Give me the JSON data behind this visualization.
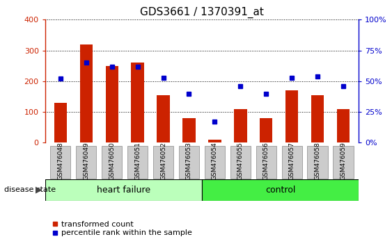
{
  "title": "GDS3661 / 1370391_at",
  "samples": [
    "GSM476048",
    "GSM476049",
    "GSM476050",
    "GSM476051",
    "GSM476052",
    "GSM476053",
    "GSM476054",
    "GSM476055",
    "GSM476056",
    "GSM476057",
    "GSM476058",
    "GSM476059"
  ],
  "bar_values": [
    130,
    320,
    250,
    260,
    155,
    80,
    10,
    110,
    80,
    170,
    155,
    110
  ],
  "dot_values": [
    52,
    65,
    62,
    62,
    53,
    40,
    17,
    46,
    40,
    53,
    54,
    46
  ],
  "bar_color": "#cc2200",
  "dot_color": "#0000cc",
  "left_ylim": [
    0,
    400
  ],
  "right_ylim": [
    0,
    100
  ],
  "left_yticks": [
    0,
    100,
    200,
    300,
    400
  ],
  "right_yticks": [
    0,
    25,
    50,
    75,
    100
  ],
  "right_yticklabels": [
    "0%",
    "25%",
    "50%",
    "75%",
    "100%"
  ],
  "heart_failure_count": 6,
  "heart_failure_label": "heart failure",
  "control_label": "control",
  "disease_state_label": "disease state",
  "legend_bar_label": "transformed count",
  "legend_dot_label": "percentile rank within the sample",
  "heart_failure_color": "#bbffbb",
  "control_color": "#44ee44",
  "xticklabel_bg": "#cccccc",
  "title_fontsize": 11,
  "bar_width": 0.5
}
